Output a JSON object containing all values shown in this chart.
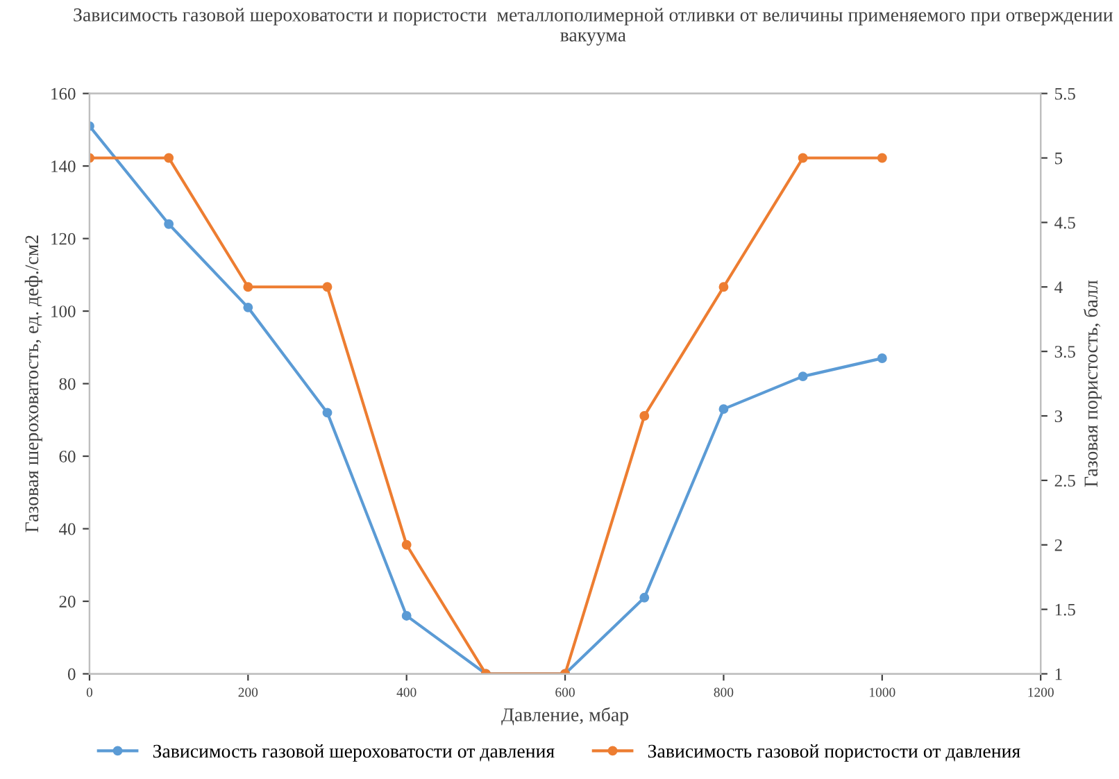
{
  "chart_data": {
    "type": "line",
    "title": "Зависимость газовой шероховатости и пористости  металлополимерной отливки от величины применяемого при отверждении вакуума",
    "xlabel": "Давление, мбар",
    "ylabel": "Газовая шероховатость, ед. деф./см2",
    "y2label": "Газовая пористость, балл",
    "x": [
      0,
      100,
      200,
      300,
      400,
      500,
      600,
      700,
      800,
      900,
      1000
    ],
    "series": [
      {
        "name": "Зависимость газовой шероховатости от давления",
        "color": "#5b9bd5",
        "values": [
          151,
          124,
          101,
          72,
          16,
          0,
          0,
          21,
          73,
          82,
          87
        ]
      },
      {
        "name": "Зависимость газовой пористости от давления",
        "color": "#ed7d31",
        "axis": "y2",
        "values": [
          5,
          5,
          4,
          4,
          2,
          1,
          1,
          3,
          4,
          5,
          5
        ]
      }
    ],
    "xlim": [
      0,
      1200
    ],
    "xticks": [
      0,
      200,
      400,
      600,
      800,
      1000,
      1200
    ],
    "ylim": [
      0,
      160
    ],
    "yticks": [
      0,
      20,
      40,
      60,
      80,
      100,
      120,
      140,
      160
    ],
    "y2lim": [
      1,
      5.5
    ],
    "y2ticks": [
      1,
      1.5,
      2,
      2.5,
      3,
      3.5,
      4,
      4.5,
      5,
      5.5
    ],
    "marker": "circle",
    "line_style": "solid",
    "legend": "bottom",
    "grid": false
  }
}
